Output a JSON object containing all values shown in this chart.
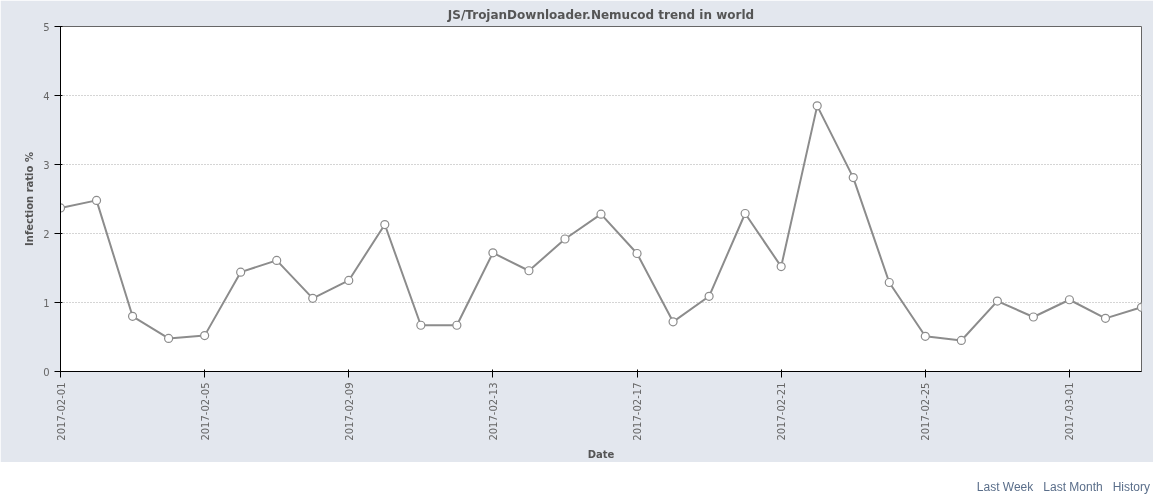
{
  "chart_data": {
    "type": "line",
    "title": "JS/TrojanDownloader.Nemucod trend in world",
    "xlabel": "Date",
    "ylabel": "Infection ratio %",
    "x": [
      "2017-02-01",
      "2017-02-02",
      "2017-02-03",
      "2017-02-04",
      "2017-02-05",
      "2017-02-06",
      "2017-02-07",
      "2017-02-08",
      "2017-02-09",
      "2017-02-10",
      "2017-02-11",
      "2017-02-12",
      "2017-02-13",
      "2017-02-14",
      "2017-02-15",
      "2017-02-16",
      "2017-02-17",
      "2017-02-18",
      "2017-02-19",
      "2017-02-20",
      "2017-02-21",
      "2017-02-22",
      "2017-02-23",
      "2017-02-24",
      "2017-02-25",
      "2017-02-26",
      "2017-02-27",
      "2017-02-28",
      "2017-03-01",
      "2017-03-02",
      "2017-03-03"
    ],
    "series": [
      {
        "color": "#8c8c8c",
        "values": [
          2.37,
          2.48,
          0.8,
          0.48,
          0.52,
          1.44,
          1.61,
          1.06,
          1.32,
          2.13,
          0.67,
          0.67,
          1.72,
          1.46,
          1.92,
          2.28,
          1.71,
          0.72,
          1.09,
          2.29,
          1.52,
          3.85,
          2.81,
          1.29,
          0.51,
          0.45,
          1.02,
          0.79,
          1.04,
          0.77,
          0.93
        ]
      }
    ],
    "xlim": [
      "2017-02-01",
      "2017-03-03"
    ],
    "xticks": [
      "2017-02-01",
      "2017-02-05",
      "2017-02-09",
      "2017-02-13",
      "2017-02-17",
      "2017-02-21",
      "2017-02-25",
      "2017-03-01"
    ],
    "ylim": [
      0,
      5
    ],
    "yticks": [
      0,
      1,
      2,
      3,
      4,
      5
    ],
    "grid": "y",
    "marker": "circle",
    "line_style": "solid",
    "annotations": [
      "Last Week",
      "Last Month",
      "History"
    ]
  }
}
